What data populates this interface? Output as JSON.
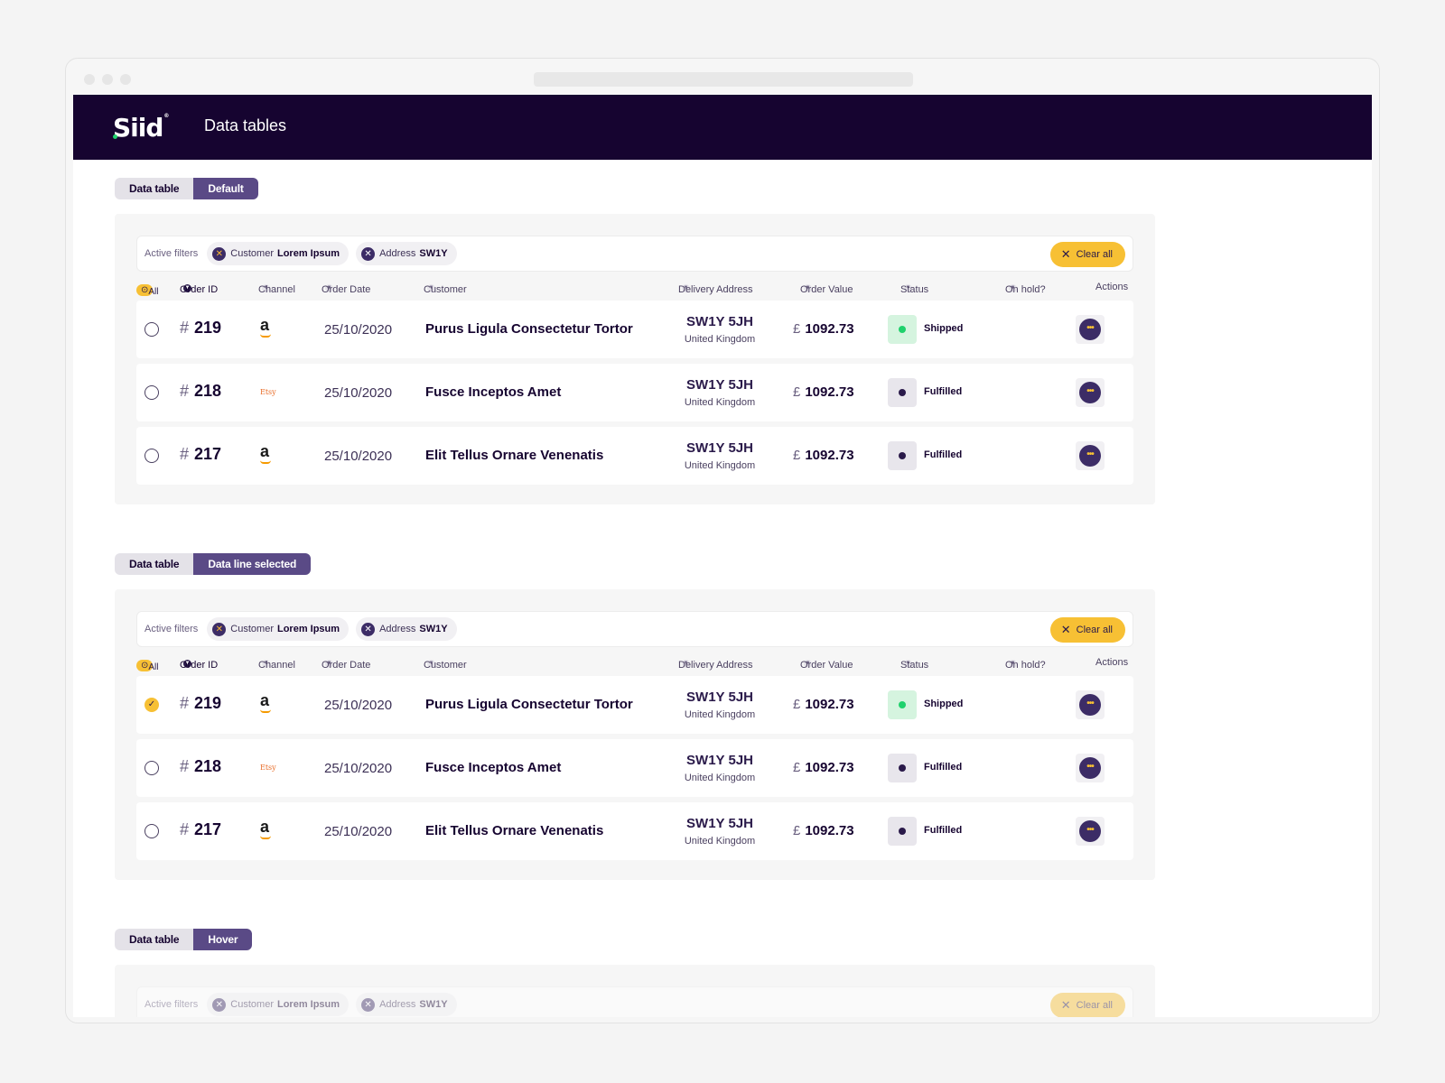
{
  "app": {
    "logo": "Siid",
    "logo_tm": "®",
    "title": "Data tables"
  },
  "sections": [
    {
      "tag_left": "Data table",
      "tag_right": "Default",
      "filters": {
        "label": "Active filters",
        "chips": [
          {
            "key": "Customer",
            "value": "Lorem Ipsum"
          },
          {
            "key": "Address",
            "value": "SW1Y"
          }
        ],
        "clear_label": "Clear all"
      },
      "headers": {
        "all": "All",
        "order_id": "Order ID",
        "channel": "Channel",
        "order_date": "Order Date",
        "customer": "Customer",
        "delivery_address": "Delivery Address",
        "order_value": "Order Value",
        "status": "Status",
        "on_hold": "On hold?",
        "actions": "Actions"
      },
      "rows": [
        {
          "selected": false,
          "hash": "#",
          "id": "219",
          "channel": "a",
          "channel_type": "amazon",
          "date": "25/10/2020",
          "customer": "Purus Ligula Consectetur Tortor",
          "postcode": "SW1Y 5JH",
          "country": "United Kingdom",
          "currency": "£",
          "value": "1092.73",
          "status": "Shipped",
          "status_color": "#1fd16c"
        },
        {
          "selected": false,
          "hash": "#",
          "id": "218",
          "channel": "Etsy",
          "channel_type": "etsy",
          "date": "25/10/2020",
          "customer": "Fusce Inceptos Amet",
          "postcode": "SW1Y 5JH",
          "country": "United Kingdom",
          "currency": "£",
          "value": "1092.73",
          "status": "Fulfilled",
          "status_color": "#2a1a4a"
        },
        {
          "selected": false,
          "hash": "#",
          "id": "217",
          "channel": "a",
          "channel_type": "amazon",
          "date": "25/10/2020",
          "customer": "Elit Tellus Ornare Venenatis",
          "postcode": "SW1Y 5JH",
          "country": "United Kingdom",
          "currency": "£",
          "value": "1092.73",
          "status": "Fulfilled",
          "status_color": "#2a1a4a"
        }
      ]
    },
    {
      "tag_left": "Data table",
      "tag_right": "Data line selected",
      "filters": {
        "label": "Active filters",
        "chips": [
          {
            "key": "Customer",
            "value": "Lorem Ipsum"
          },
          {
            "key": "Address",
            "value": "SW1Y"
          }
        ],
        "clear_label": "Clear all"
      },
      "headers": {
        "all": "All",
        "order_id": "Order ID",
        "channel": "Channel",
        "order_date": "Order Date",
        "customer": "Customer",
        "delivery_address": "Delivery Address",
        "order_value": "Order Value",
        "status": "Status",
        "on_hold": "On hold?",
        "actions": "Actions"
      },
      "rows": [
        {
          "selected": true,
          "hash": "#",
          "id": "219",
          "channel": "a",
          "channel_type": "amazon",
          "date": "25/10/2020",
          "customer": "Purus Ligula Consectetur Tortor",
          "postcode": "SW1Y 5JH",
          "country": "United Kingdom",
          "currency": "£",
          "value": "1092.73",
          "status": "Shipped",
          "status_color": "#1fd16c"
        },
        {
          "selected": false,
          "hash": "#",
          "id": "218",
          "channel": "Etsy",
          "channel_type": "etsy",
          "date": "25/10/2020",
          "customer": "Fusce Inceptos Amet",
          "postcode": "SW1Y 5JH",
          "country": "United Kingdom",
          "currency": "£",
          "value": "1092.73",
          "status": "Fulfilled",
          "status_color": "#2a1a4a"
        },
        {
          "selected": false,
          "hash": "#",
          "id": "217",
          "channel": "a",
          "channel_type": "amazon",
          "date": "25/10/2020",
          "customer": "Elit Tellus Ornare Venenatis",
          "postcode": "SW1Y 5JH",
          "country": "United Kingdom",
          "currency": "£",
          "value": "1092.73",
          "status": "Fulfilled",
          "status_color": "#2a1a4a"
        }
      ]
    },
    {
      "tag_left": "Data table",
      "tag_right": "Hover",
      "filters": {
        "label": "Active filters",
        "chips": [
          {
            "key": "Customer",
            "value": "Lorem Ipsum"
          },
          {
            "key": "Address",
            "value": "SW1Y"
          }
        ],
        "clear_label": "Clear all"
      }
    }
  ],
  "colors": {
    "header_bg": "#160430",
    "accent_yellow": "#f7c034",
    "accent_purple": "#5a4a86",
    "status_green": "#1fd16c"
  }
}
